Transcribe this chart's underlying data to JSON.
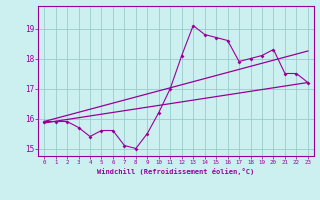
{
  "hours": [
    0,
    1,
    2,
    3,
    4,
    5,
    6,
    7,
    8,
    9,
    10,
    11,
    12,
    13,
    14,
    15,
    16,
    17,
    18,
    19,
    20,
    21,
    22,
    23
  ],
  "windchill": [
    15.9,
    15.9,
    15.9,
    15.7,
    15.4,
    15.6,
    15.6,
    15.1,
    15.0,
    15.5,
    16.2,
    17.0,
    18.1,
    19.1,
    18.8,
    18.7,
    18.6,
    17.9,
    18.0,
    18.1,
    18.3,
    17.5,
    17.5,
    17.2
  ],
  "trend_upper_start": 15.9,
  "trend_upper_end": 18.25,
  "trend_lower_start": 15.85,
  "trend_lower_end": 17.2,
  "line_color": "#990099",
  "bg_color": "#ccf0f0",
  "grid_color": "#99cccc",
  "xlabel": "Windchill (Refroidissement éolien,°C)",
  "xlim": [
    -0.5,
    23.5
  ],
  "ylim": [
    14.75,
    19.75
  ],
  "yticks": [
    15,
    16,
    17,
    18,
    19
  ],
  "xticks": [
    0,
    1,
    2,
    3,
    4,
    5,
    6,
    7,
    8,
    9,
    10,
    11,
    12,
    13,
    14,
    15,
    16,
    17,
    18,
    19,
    20,
    21,
    22,
    23
  ]
}
